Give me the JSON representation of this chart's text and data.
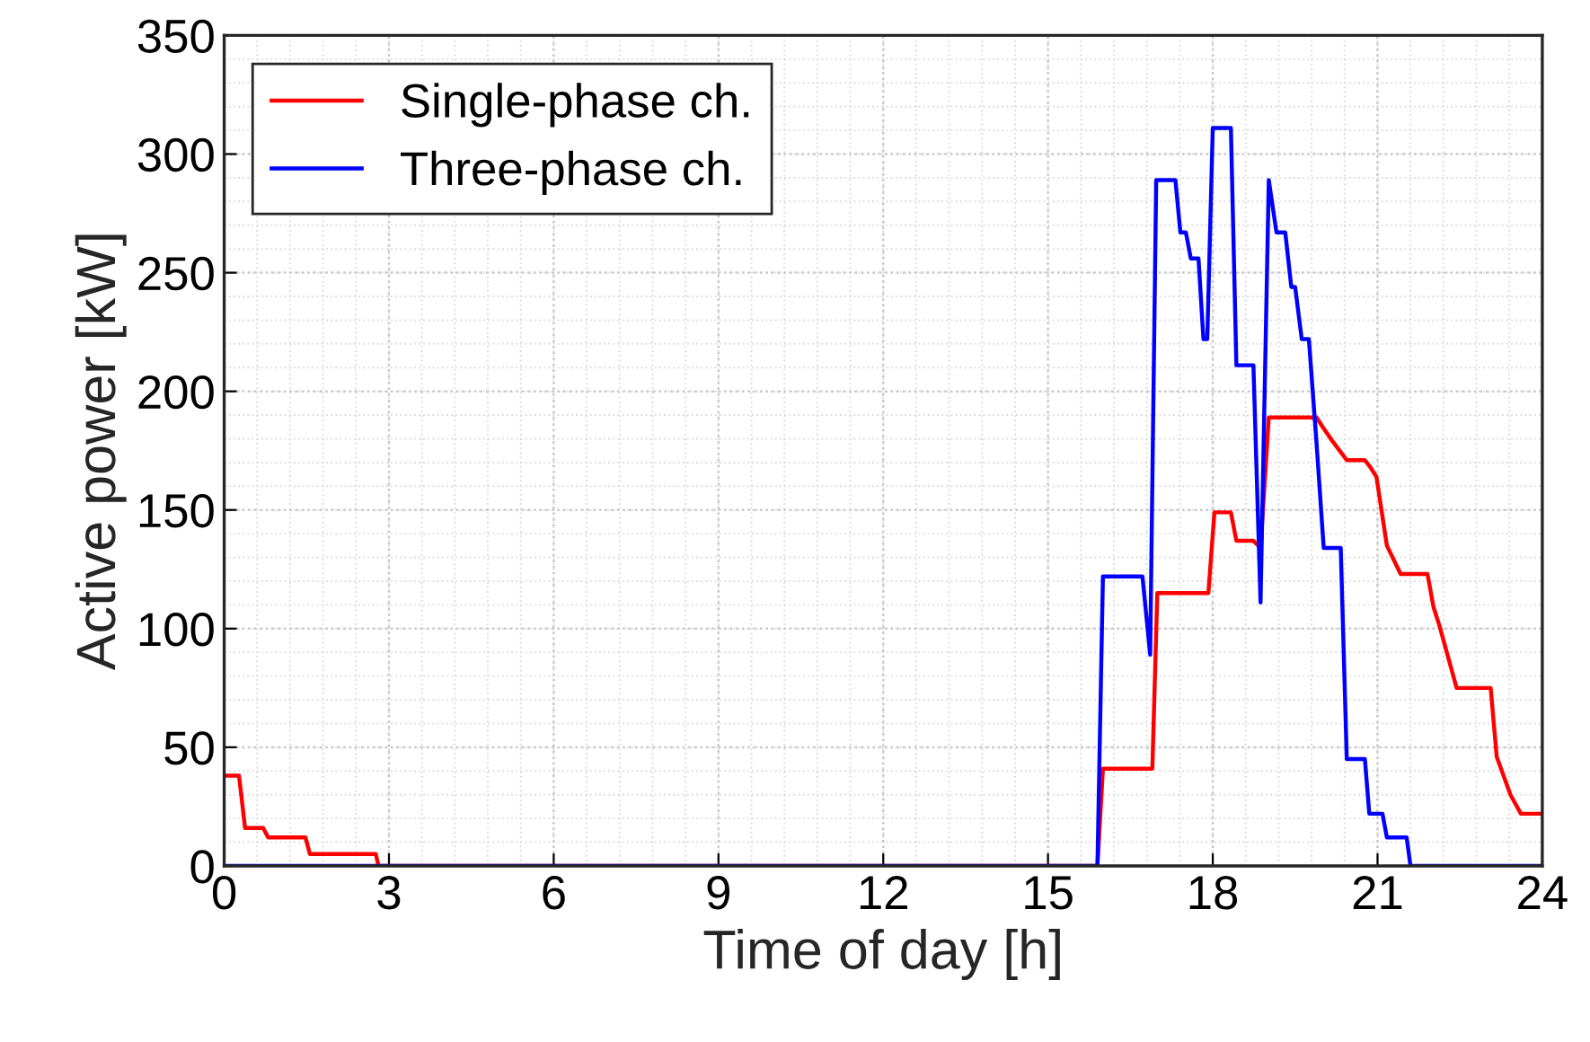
{
  "chart_data": {
    "type": "line",
    "xlabel": "Time of day [h]",
    "ylabel": "Active power [kW]",
    "xlim": [
      0,
      24
    ],
    "xticks": [
      0,
      3,
      6,
      9,
      12,
      15,
      18,
      21,
      24
    ],
    "ylim": [
      0,
      350
    ],
    "yticks": [
      0,
      50,
      100,
      150,
      200,
      250,
      300,
      350
    ],
    "grid": true,
    "legend": "top left",
    "line_style": "solid",
    "marker": "none",
    "series": [
      {
        "name": "Single-phase ch.",
        "color": "#ff0000",
        "x": [
          0,
          0.27,
          0.38,
          0.71,
          0.8,
          1.48,
          1.56,
          2.76,
          2.81,
          15.9,
          16.0,
          16.9,
          16.99,
          17.92,
          18.03,
          18.33,
          18.43,
          18.74,
          18.87,
          19.02,
          19.89,
          20.0,
          20.18,
          20.44,
          20.77,
          20.87,
          20.98,
          21.17,
          21.42,
          21.91,
          22.02,
          22.13,
          22.44,
          23.06,
          23.17,
          23.42,
          23.61,
          24
        ],
        "values": [
          38,
          38,
          16,
          16,
          12,
          12,
          5,
          5,
          0,
          0,
          41,
          41,
          115,
          115,
          149,
          149,
          137,
          137,
          134,
          189,
          189,
          185,
          179,
          171,
          171,
          168,
          164,
          135,
          123,
          123,
          109,
          101,
          75,
          75,
          46,
          30,
          22,
          22
        ]
      },
      {
        "name": "Three-phase ch.",
        "color": "#0000ff",
        "x": [
          0,
          15.9,
          16.0,
          16.72,
          16.86,
          16.97,
          17.32,
          17.41,
          17.51,
          17.6,
          17.74,
          17.83,
          17.9,
          18.0,
          18.33,
          18.43,
          18.74,
          18.87,
          19.02,
          19.16,
          19.32,
          19.43,
          19.5,
          19.62,
          19.75,
          19.89,
          20.02,
          20.33,
          20.44,
          20.77,
          20.85,
          21.09,
          21.17,
          21.53,
          21.6,
          24
        ],
        "values": [
          0,
          0,
          122,
          122,
          89,
          289,
          289,
          267,
          267,
          256,
          256,
          222,
          222,
          311,
          311,
          211,
          211,
          111,
          289,
          267,
          267,
          244,
          244,
          222,
          222,
          178,
          134,
          134,
          45,
          45,
          22,
          22,
          12,
          12,
          0,
          0
        ]
      }
    ]
  }
}
